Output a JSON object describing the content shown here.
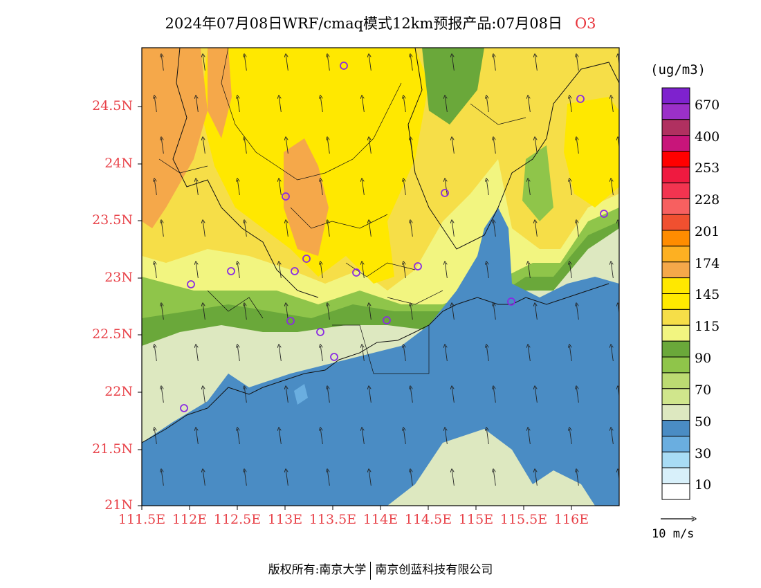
{
  "header": {
    "title": "2024年07月08日WRF/cmaq模式12km预报产品:07月08日",
    "species": "O3"
  },
  "map": {
    "y_ticks": [
      "24.5N",
      "24N",
      "23.5N",
      "23N",
      "22.5N",
      "22N",
      "21.5N",
      "21N"
    ],
    "x_ticks": [
      "111.5E",
      "112E",
      "112.5E",
      "113E",
      "113.5E",
      "114E",
      "114.5E",
      "115E",
      "115.5E",
      "116E"
    ],
    "wind_direction": "south-southeast",
    "marker_color": "#8a2be2"
  },
  "legend": {
    "unit": "(ug/m3)",
    "labels": [
      "670",
      "400",
      "253",
      "228",
      "201",
      "174",
      "145",
      "115",
      "90",
      "70",
      "50",
      "30",
      "10"
    ],
    "colors": [
      "#7e22ce",
      "#9b30c8",
      "#b03060",
      "#c8157a",
      "#ff0000",
      "#ef1a40",
      "#f23450",
      "#f76060",
      "#f05030",
      "#ff8c00",
      "#fdb022",
      "#f5a84a",
      "#ffe800",
      "#ffea00",
      "#f6de48",
      "#f2f580",
      "#6aa83a",
      "#8fc54a",
      "#bcdb72",
      "#d0e68c",
      "#dde8c0",
      "#4a8cc4",
      "#6aaee0",
      "#a8dcf5",
      "#d8f0fa",
      "#ffffff"
    ]
  },
  "vector": {
    "label": "10 m/s"
  },
  "footer": {
    "left": "版权所有:南京大学",
    "right": "南京创蓝科技有限公司"
  }
}
